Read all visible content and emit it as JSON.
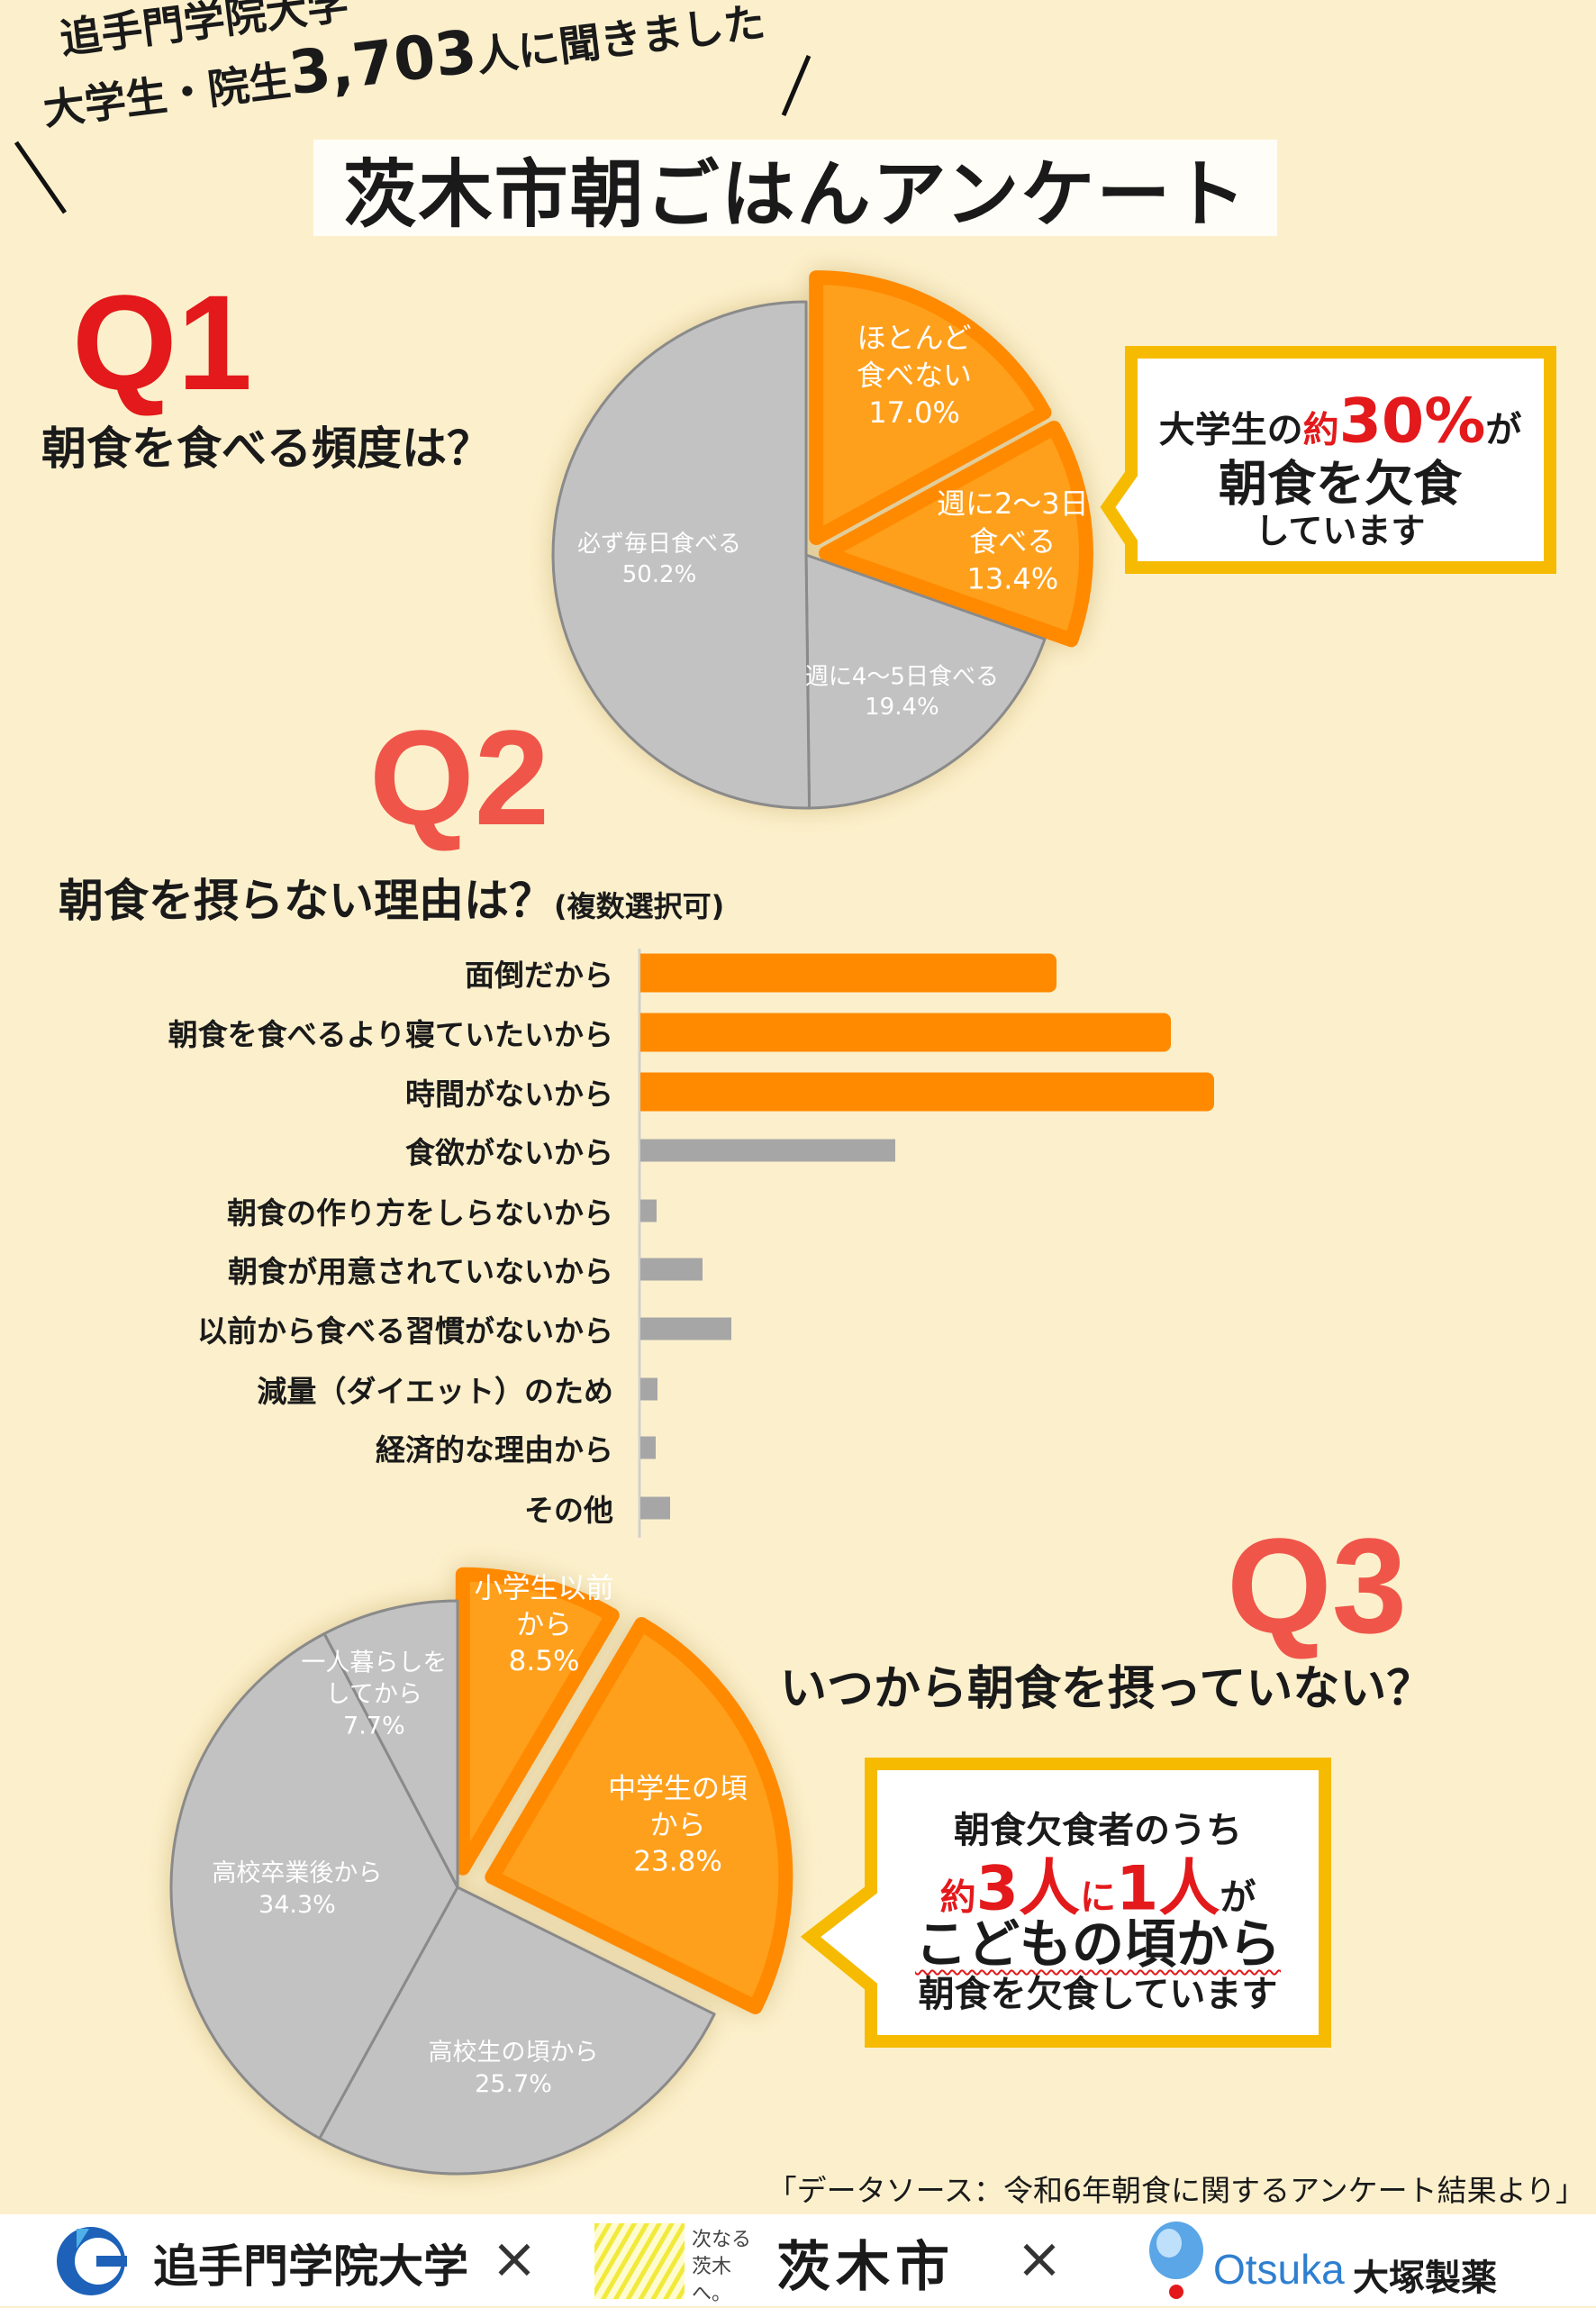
{
  "header": {
    "line1": "追手門学院大学",
    "line2_pre": "大学生・院生",
    "line2_num": "3,703",
    "line2_post": "人に聞きました",
    "title": "茨木市朝ごはんアンケート"
  },
  "q1": {
    "label": "Q1",
    "question": "朝食を食べる頻度は？",
    "callout": {
      "pre": "大学生の",
      "approx": "約",
      "value": "30%",
      "post": "が",
      "line2": "朝食を欠食",
      "line3": "しています"
    }
  },
  "q2": {
    "label": "Q2",
    "question": "朝食を摂らない理由は？",
    "note": "(複数選択可)"
  },
  "q3": {
    "label": "Q3",
    "question": "いつから朝食を摂っていない？",
    "callout": {
      "line1": "朝食欠食者のうち",
      "approx": "約",
      "n1": "3人",
      "mid": "に",
      "n2": "1人",
      "post": "が",
      "line3": "こどもの頃から",
      "line4": "朝食を欠食しています"
    }
  },
  "source": "「データソース：令和6年朝食に関するアンケート結果より」",
  "footer": {
    "univ": "追手門学院大学",
    "times1": "×",
    "city_tag": "次なる茨木へ。",
    "city": "茨木市",
    "times2": "×",
    "otsuka_en": "Otsuka",
    "otsuka_jp": "大塚製薬"
  },
  "colors": {
    "highlight": "#ff8a00",
    "highlight_fill": "#ffa01e",
    "neutral": "#c2c2c2",
    "neutral_bar": "#a6a6a6",
    "q1": "#e3191b",
    "q_other": "#f0554a",
    "callout_border": "#f6bb00",
    "background": "#fcf0cc"
  },
  "chart_data": [
    {
      "type": "pie",
      "title": "朝食を食べる頻度は？",
      "slices": [
        {
          "label": "ほとんど食べない",
          "label_lines": [
            "ほとんど",
            "食べない"
          ],
          "value_text": "17.0%",
          "value": 17.0,
          "highlight": true
        },
        {
          "label": "週に2〜3日食べる",
          "label_lines": [
            "週に2〜3日",
            "食べる"
          ],
          "value_text": "13.4%",
          "value": 13.4,
          "highlight": true
        },
        {
          "label": "週に4〜5日食べる",
          "label_lines": [
            "週に4〜5日食べる"
          ],
          "value_text": "19.4%",
          "value": 19.4,
          "highlight": false
        },
        {
          "label": "必ず毎日食べる",
          "label_lines": [
            "必ず毎日食べる"
          ],
          "value_text": "50.2%",
          "value": 50.2,
          "highlight": false
        }
      ]
    },
    {
      "type": "bar",
      "orientation": "horizontal",
      "title": "朝食を摂らない理由は？(複数選択可)",
      "categories": [
        "面倒だから",
        "朝食を食べるより寝ていたいから",
        "時間がないから",
        "食欲がないから",
        "朝食の作り方をしらないから",
        "朝食が用意されていないから",
        "以前から食べる習慣がないから",
        "減量（ダイエット）のため",
        "経済的な理由から",
        "その他"
      ],
      "values": [
        36.3,
        46.2,
        50.0,
        22.2,
        1.4,
        5.4,
        7.9,
        1.5,
        1.3,
        2.6
      ],
      "highlight": [
        true,
        true,
        true,
        false,
        false,
        false,
        false,
        false,
        false,
        false
      ],
      "grid": false
    },
    {
      "type": "pie",
      "title": "いつから朝食を摂っていない？",
      "slices": [
        {
          "label": "小学生以前から",
          "label_lines": [
            "小学生以前",
            "から"
          ],
          "value_text": "8.5%",
          "value": 8.5,
          "highlight": true
        },
        {
          "label": "中学生の頃から",
          "label_lines": [
            "中学生の頃",
            "から"
          ],
          "value_text": "23.8%",
          "value": 23.8,
          "highlight": true
        },
        {
          "label": "高校生の頃から",
          "label_lines": [
            "高校生の頃から"
          ],
          "value_text": "25.7%",
          "value": 25.7,
          "highlight": false
        },
        {
          "label": "高校卒業後から",
          "label_lines": [
            "高校卒業後から"
          ],
          "value_text": "34.3%",
          "value": 34.3,
          "highlight": false
        },
        {
          "label": "一人暮らしをしてから",
          "label_lines": [
            "一人暮らしを",
            "してから"
          ],
          "value_text": "7.7%",
          "value": 7.7,
          "highlight": false
        }
      ]
    }
  ]
}
